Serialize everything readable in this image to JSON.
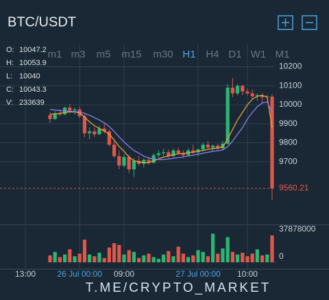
{
  "header": {
    "title": "BTC/USDT"
  },
  "info": [
    {
      "label": "O:",
      "value": 10047.2
    },
    {
      "label": "H:",
      "value": 10053.9
    },
    {
      "label": "L:",
      "value": 10040
    },
    {
      "label": "C:",
      "value": 10043.3
    },
    {
      "label": "V:",
      "value": 233639
    }
  ],
  "timeframes": [
    "m1",
    "m3",
    "m5",
    "m15",
    "m30",
    "H1",
    "H4",
    "D1",
    "W1",
    "M1"
  ],
  "active_timeframe": 5,
  "watermark": "T.ME/CRYPTO_MARKET",
  "chart_data": {
    "type": "candlestick",
    "x": [
      5,
      6,
      7,
      8,
      9,
      10,
      11,
      12,
      13,
      14,
      15,
      16,
      17,
      18,
      19,
      20,
      21,
      22,
      23,
      24,
      25,
      26,
      27,
      28,
      29,
      30,
      31,
      32,
      33,
      34,
      35,
      36,
      37,
      38,
      39,
      40,
      41,
      42,
      43,
      44,
      45,
      46,
      47,
      48,
      49,
      50
    ],
    "open": [
      9945,
      9925,
      9955,
      9950,
      9985,
      9970,
      9975,
      9940,
      9850,
      9860,
      9845,
      9875,
      9860,
      9790,
      9730,
      9680,
      9725,
      9660,
      9705,
      9690,
      9710,
      9695,
      9735,
      9745,
      9750,
      9730,
      9760,
      9745,
      9735,
      9760,
      9750,
      9765,
      9790,
      9775,
      9785,
      9770,
      9795,
      10090,
      10060,
      10100,
      10070,
      10060,
      10045,
      10050,
      10040,
      10043
    ],
    "high": [
      9960,
      9965,
      9975,
      9990,
      10005,
      9985,
      9990,
      9950,
      9880,
      9880,
      9890,
      9900,
      9870,
      9810,
      9760,
      9740,
      9735,
      9720,
      9730,
      9720,
      9725,
      9745,
      9760,
      9770,
      9765,
      9770,
      9775,
      9760,
      9770,
      9790,
      9770,
      9800,
      9810,
      9790,
      9795,
      9810,
      10110,
      10140,
      10110,
      10105,
      10085,
      10080,
      10060,
      10060,
      10053,
      10055
    ],
    "low": [
      9905,
      9920,
      9940,
      9945,
      9960,
      9950,
      9930,
      9830,
      9820,
      9830,
      9840,
      9850,
      9780,
      9720,
      9660,
      9670,
      9640,
      9620,
      9680,
      9670,
      9685,
      9690,
      9720,
      9730,
      9720,
      9725,
      9740,
      9720,
      9730,
      9740,
      9730,
      9755,
      9770,
      9755,
      9760,
      9765,
      9790,
      10040,
      10050,
      10050,
      10050,
      10030,
      10020,
      10010,
      10040,
      9500
    ],
    "close": [
      9925,
      9955,
      9950,
      9985,
      9970,
      9975,
      9940,
      9850,
      9860,
      9845,
      9875,
      9860,
      9790,
      9730,
      9680,
      9725,
      9660,
      9705,
      9690,
      9710,
      9695,
      9735,
      9745,
      9750,
      9730,
      9760,
      9745,
      9735,
      9760,
      9750,
      9765,
      9790,
      9775,
      9785,
      9770,
      9795,
      10090,
      10060,
      10100,
      10070,
      10060,
      10045,
      10050,
      10040,
      10043,
      9560.21
    ],
    "up_color": "#2bb673",
    "down_color": "#e0574a",
    "ma": [
      {
        "color": "#e8a33c",
        "values": [
          9950,
          9952,
          9955,
          9960,
          9962,
          9962,
          9958,
          9935,
          9910,
          9890,
          9875,
          9862,
          9845,
          9815,
          9780,
          9755,
          9725,
          9705,
          9700,
          9695,
          9695,
          9705,
          9715,
          9725,
          9730,
          9738,
          9742,
          9744,
          9748,
          9750,
          9755,
          9760,
          9765,
          9770,
          9772,
          9778,
          9820,
          9870,
          9920,
          9960,
          10000,
          10030,
          10045,
          10050,
          10040,
          9880
        ]
      },
      {
        "color": "#8c7ff0",
        "values": [
          9975,
          9972,
          9970,
          9968,
          9966,
          9964,
          9962,
          9955,
          9945,
          9932,
          9920,
          9905,
          9885,
          9860,
          9830,
          9805,
          9780,
          9760,
          9745,
          9730,
          9720,
          9715,
          9712,
          9712,
          9715,
          9718,
          9722,
          9726,
          9730,
          9735,
          9740,
          9745,
          9750,
          9755,
          9758,
          9762,
          9780,
          9810,
          9845,
          9880,
          9925,
          9960,
          9990,
          10010,
          10015,
          9960
        ]
      }
    ],
    "volume": [
      8000000,
      12000000,
      6000000,
      9000000,
      15000000,
      7000000,
      10000000,
      26000000,
      9000000,
      7000000,
      11000000,
      5000000,
      17000000,
      22000000,
      20000000,
      9000000,
      14000000,
      12000000,
      5000000,
      8000000,
      10000000,
      6000000,
      4000000,
      9000000,
      13000000,
      7000000,
      18000000,
      10000000,
      6000000,
      8000000,
      14000000,
      12000000,
      7000000,
      33000000,
      10000000,
      16000000,
      29000000,
      12000000,
      9000000,
      11000000,
      7000000,
      10000000,
      15000000,
      8000000,
      9000000,
      31000000
    ],
    "xlim": [
      -5.14,
      50.42
    ],
    "xticks": [
      {
        "value": 0,
        "label": "13:00"
      },
      {
        "value": 11,
        "label": "26 Jul 00:00"
      },
      {
        "value": 20,
        "label": "09:00"
      },
      {
        "value": 35,
        "label": "27 Jul 00:00"
      },
      {
        "value": 45,
        "label": "10:00"
      }
    ],
    "date_ticks": [
      1,
      3
    ],
    "ylim": [
      9380,
      10245
    ],
    "yticks": [
      9700,
      9800,
      9900,
      10000,
      10100,
      10200
    ],
    "vlim": [
      0,
      37878000
    ],
    "vticks": [
      37878000,
      0
    ],
    "last_price": 9560.21,
    "grid": true
  }
}
